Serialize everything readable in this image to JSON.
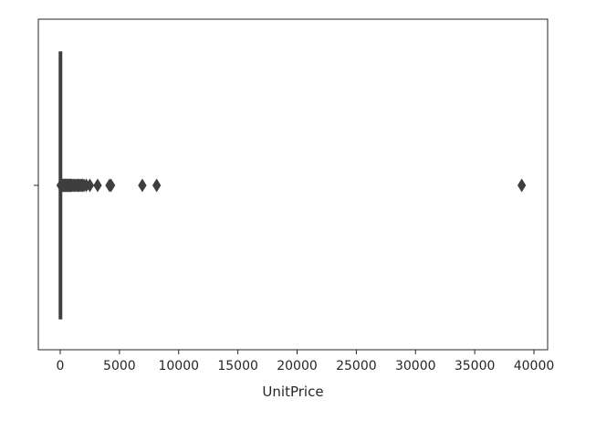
{
  "chart_data": {
    "type": "boxplot",
    "orientation": "horizontal",
    "title": "",
    "xlabel": "UnitPrice",
    "ylabel": "",
    "xlim": [
      -2000,
      41000
    ],
    "x_ticks": [
      0,
      5000,
      10000,
      15000,
      20000,
      25000,
      30000,
      35000,
      40000
    ],
    "x_tick_labels": [
      "0",
      "5000",
      "10000",
      "15000",
      "20000",
      "25000",
      "30000",
      "35000",
      "40000"
    ],
    "grid": false,
    "legend": false,
    "box": {
      "min": 0,
      "q1": 1.25,
      "median": 2.08,
      "q3": 4.13,
      "whisker_low": 0,
      "whisker_high": 8.45
    },
    "outliers": [
      40,
      60,
      90,
      120,
      150,
      200,
      250,
      300,
      350,
      400,
      450,
      500,
      550,
      600,
      650,
      700,
      750,
      800,
      850,
      900,
      950,
      1000,
      1100,
      1200,
      1300,
      1400,
      1500,
      1600,
      1700,
      1800,
      1900,
      2000,
      2200,
      2500,
      3155,
      4161,
      4287,
      6930,
      8143,
      38970
    ],
    "colors": {
      "box_fill": "#3a74b2",
      "line": "#3f3f3f",
      "outlier": "#3f3f3f",
      "frame": "#262626"
    }
  }
}
